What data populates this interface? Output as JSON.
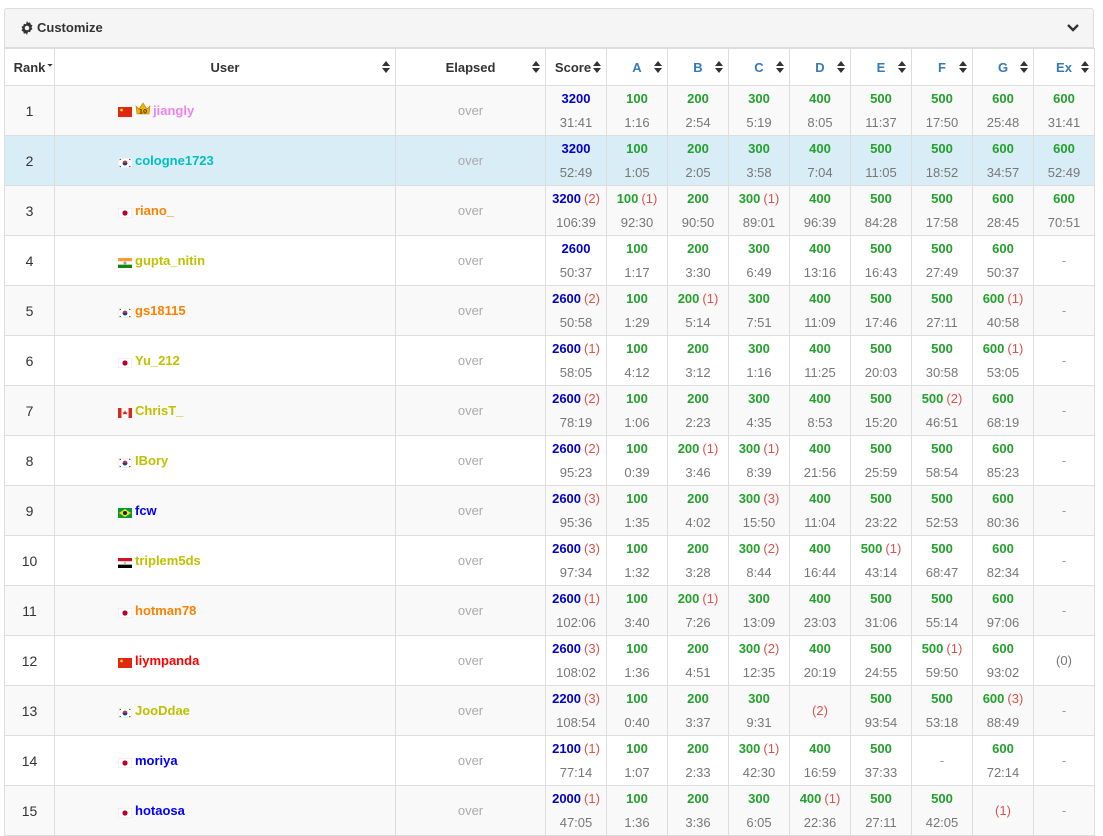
{
  "panel": {
    "title": "Customize"
  },
  "header": {
    "rank": "Rank",
    "user": "User",
    "elapsed": "Elapsed",
    "score": "Score",
    "tasks": [
      "A",
      "B",
      "C",
      "D",
      "E",
      "F",
      "G",
      "Ex"
    ]
  },
  "colors": {
    "link": "#337ab7",
    "score": "#0000cc",
    "accepted": "#22a12b",
    "penalty": "#d9534f",
    "highlight_row": "#d9edf7"
  },
  "rows": [
    {
      "rank": "1",
      "flag": "cn",
      "crown": "10",
      "user": "jiangly",
      "user_color": "#ee82ee",
      "elapsed": "over",
      "score": {
        "pt": "3200",
        "pen": "",
        "tm": "31:41"
      },
      "tasks": [
        {
          "pt": "100",
          "pen": "",
          "tm": "1:16"
        },
        {
          "pt": "200",
          "pen": "",
          "tm": "2:54"
        },
        {
          "pt": "300",
          "pen": "",
          "tm": "5:19"
        },
        {
          "pt": "400",
          "pen": "",
          "tm": "8:05"
        },
        {
          "pt": "500",
          "pen": "",
          "tm": "11:37"
        },
        {
          "pt": "500",
          "pen": "",
          "tm": "17:50"
        },
        {
          "pt": "600",
          "pen": "",
          "tm": "25:48"
        },
        {
          "pt": "600",
          "pen": "",
          "tm": "31:41"
        }
      ]
    },
    {
      "rank": "2",
      "flag": "kr",
      "crown": "",
      "user": "cologne1723",
      "user_color": "#00c0c0",
      "elapsed": "over",
      "highlight": true,
      "score": {
        "pt": "3200",
        "pen": "",
        "tm": "52:49"
      },
      "tasks": [
        {
          "pt": "100",
          "pen": "",
          "tm": "1:05"
        },
        {
          "pt": "200",
          "pen": "",
          "tm": "2:05"
        },
        {
          "pt": "300",
          "pen": "",
          "tm": "3:58"
        },
        {
          "pt": "400",
          "pen": "",
          "tm": "7:04"
        },
        {
          "pt": "500",
          "pen": "",
          "tm": "11:05"
        },
        {
          "pt": "500",
          "pen": "",
          "tm": "18:52"
        },
        {
          "pt": "600",
          "pen": "",
          "tm": "34:57"
        },
        {
          "pt": "600",
          "pen": "",
          "tm": "52:49"
        }
      ]
    },
    {
      "rank": "3",
      "flag": "jp",
      "crown": "",
      "user": "riano_",
      "user_color": "#ff8000",
      "elapsed": "over",
      "score": {
        "pt": "3200",
        "pen": "(2)",
        "tm": "106:39"
      },
      "tasks": [
        {
          "pt": "100",
          "pen": "(1)",
          "tm": "92:30"
        },
        {
          "pt": "200",
          "pen": "",
          "tm": "90:50"
        },
        {
          "pt": "300",
          "pen": "(1)",
          "tm": "89:01"
        },
        {
          "pt": "400",
          "pen": "",
          "tm": "96:39"
        },
        {
          "pt": "500",
          "pen": "",
          "tm": "84:28"
        },
        {
          "pt": "500",
          "pen": "",
          "tm": "17:58"
        },
        {
          "pt": "600",
          "pen": "",
          "tm": "28:45"
        },
        {
          "pt": "600",
          "pen": "",
          "tm": "70:51"
        }
      ]
    },
    {
      "rank": "4",
      "flag": "in",
      "crown": "",
      "user": "gupta_nitin",
      "user_color": "#c0c000",
      "elapsed": "over",
      "score": {
        "pt": "2600",
        "pen": "",
        "tm": "50:37"
      },
      "tasks": [
        {
          "pt": "100",
          "pen": "",
          "tm": "1:17"
        },
        {
          "pt": "200",
          "pen": "",
          "tm": "3:30"
        },
        {
          "pt": "300",
          "pen": "",
          "tm": "6:49"
        },
        {
          "pt": "400",
          "pen": "",
          "tm": "13:16"
        },
        {
          "pt": "500",
          "pen": "",
          "tm": "16:43"
        },
        {
          "pt": "500",
          "pen": "",
          "tm": "27:49"
        },
        {
          "pt": "600",
          "pen": "",
          "tm": "50:37"
        },
        {
          "dash": "-"
        }
      ]
    },
    {
      "rank": "5",
      "flag": "kr",
      "crown": "",
      "user": "gs18115",
      "user_color": "#ff8000",
      "elapsed": "over",
      "score": {
        "pt": "2600",
        "pen": "(2)",
        "tm": "50:58"
      },
      "tasks": [
        {
          "pt": "100",
          "pen": "",
          "tm": "1:29"
        },
        {
          "pt": "200",
          "pen": "(1)",
          "tm": "5:14"
        },
        {
          "pt": "300",
          "pen": "",
          "tm": "7:51"
        },
        {
          "pt": "400",
          "pen": "",
          "tm": "11:09"
        },
        {
          "pt": "500",
          "pen": "",
          "tm": "17:46"
        },
        {
          "pt": "500",
          "pen": "",
          "tm": "27:11"
        },
        {
          "pt": "600",
          "pen": "(1)",
          "tm": "40:58"
        },
        {
          "dash": "-"
        }
      ]
    },
    {
      "rank": "6",
      "flag": "jp",
      "crown": "",
      "user": "Yu_212",
      "user_color": "#c0c000",
      "elapsed": "over",
      "score": {
        "pt": "2600",
        "pen": "(1)",
        "tm": "58:05"
      },
      "tasks": [
        {
          "pt": "100",
          "pen": "",
          "tm": "4:12"
        },
        {
          "pt": "200",
          "pen": "",
          "tm": "3:12"
        },
        {
          "pt": "300",
          "pen": "",
          "tm": "1:16"
        },
        {
          "pt": "400",
          "pen": "",
          "tm": "11:25"
        },
        {
          "pt": "500",
          "pen": "",
          "tm": "20:03"
        },
        {
          "pt": "500",
          "pen": "",
          "tm": "30:58"
        },
        {
          "pt": "600",
          "pen": "(1)",
          "tm": "53:05"
        },
        {
          "dash": "-"
        }
      ]
    },
    {
      "rank": "7",
      "flag": "ca",
      "crown": "",
      "user": "ChrisT_",
      "user_color": "#c0c000",
      "elapsed": "over",
      "score": {
        "pt": "2600",
        "pen": "(2)",
        "tm": "78:19"
      },
      "tasks": [
        {
          "pt": "100",
          "pen": "",
          "tm": "1:06"
        },
        {
          "pt": "200",
          "pen": "",
          "tm": "2:23"
        },
        {
          "pt": "300",
          "pen": "",
          "tm": "4:35"
        },
        {
          "pt": "400",
          "pen": "",
          "tm": "8:53"
        },
        {
          "pt": "500",
          "pen": "",
          "tm": "15:20"
        },
        {
          "pt": "500",
          "pen": "(2)",
          "tm": "46:51"
        },
        {
          "pt": "600",
          "pen": "",
          "tm": "68:19"
        },
        {
          "dash": "-"
        }
      ]
    },
    {
      "rank": "8",
      "flag": "kr",
      "crown": "",
      "user": "IBory",
      "user_color": "#c0c000",
      "elapsed": "over",
      "score": {
        "pt": "2600",
        "pen": "(2)",
        "tm": "95:23"
      },
      "tasks": [
        {
          "pt": "100",
          "pen": "",
          "tm": "0:39"
        },
        {
          "pt": "200",
          "pen": "(1)",
          "tm": "3:46"
        },
        {
          "pt": "300",
          "pen": "(1)",
          "tm": "8:39"
        },
        {
          "pt": "400",
          "pen": "",
          "tm": "21:56"
        },
        {
          "pt": "500",
          "pen": "",
          "tm": "25:59"
        },
        {
          "pt": "500",
          "pen": "",
          "tm": "58:54"
        },
        {
          "pt": "600",
          "pen": "",
          "tm": "85:23"
        },
        {
          "dash": "-"
        }
      ]
    },
    {
      "rank": "9",
      "flag": "br",
      "crown": "",
      "user": "fcw",
      "user_color": "#0000ff",
      "elapsed": "over",
      "score": {
        "pt": "2600",
        "pen": "(3)",
        "tm": "95:36"
      },
      "tasks": [
        {
          "pt": "100",
          "pen": "",
          "tm": "1:35"
        },
        {
          "pt": "200",
          "pen": "",
          "tm": "4:02"
        },
        {
          "pt": "300",
          "pen": "(3)",
          "tm": "15:50"
        },
        {
          "pt": "400",
          "pen": "",
          "tm": "11:04"
        },
        {
          "pt": "500",
          "pen": "",
          "tm": "23:22"
        },
        {
          "pt": "500",
          "pen": "",
          "tm": "52:53"
        },
        {
          "pt": "600",
          "pen": "",
          "tm": "80:36"
        },
        {
          "dash": "-"
        }
      ]
    },
    {
      "rank": "10",
      "flag": "eg",
      "crown": "",
      "user": "triplem5ds",
      "user_color": "#c0c000",
      "elapsed": "over",
      "score": {
        "pt": "2600",
        "pen": "(3)",
        "tm": "97:34"
      },
      "tasks": [
        {
          "pt": "100",
          "pen": "",
          "tm": "1:32"
        },
        {
          "pt": "200",
          "pen": "",
          "tm": "3:28"
        },
        {
          "pt": "300",
          "pen": "(2)",
          "tm": "8:44"
        },
        {
          "pt": "400",
          "pen": "",
          "tm": "16:44"
        },
        {
          "pt": "500",
          "pen": "(1)",
          "tm": "43:14"
        },
        {
          "pt": "500",
          "pen": "",
          "tm": "68:47"
        },
        {
          "pt": "600",
          "pen": "",
          "tm": "82:34"
        },
        {
          "dash": "-"
        }
      ]
    },
    {
      "rank": "11",
      "flag": "jp",
      "crown": "",
      "user": "hotman78",
      "user_color": "#ff8000",
      "elapsed": "over",
      "score": {
        "pt": "2600",
        "pen": "(1)",
        "tm": "102:06"
      },
      "tasks": [
        {
          "pt": "100",
          "pen": "",
          "tm": "3:40"
        },
        {
          "pt": "200",
          "pen": "(1)",
          "tm": "7:26"
        },
        {
          "pt": "300",
          "pen": "",
          "tm": "13:09"
        },
        {
          "pt": "400",
          "pen": "",
          "tm": "23:03"
        },
        {
          "pt": "500",
          "pen": "",
          "tm": "31:06"
        },
        {
          "pt": "500",
          "pen": "",
          "tm": "55:14"
        },
        {
          "pt": "600",
          "pen": "",
          "tm": "97:06"
        },
        {
          "dash": "-"
        }
      ]
    },
    {
      "rank": "12",
      "flag": "cn",
      "crown": "",
      "user": "liympanda",
      "user_color": "#ff0000",
      "elapsed": "over",
      "score": {
        "pt": "2600",
        "pen": "(3)",
        "tm": "108:02"
      },
      "tasks": [
        {
          "pt": "100",
          "pen": "",
          "tm": "1:36"
        },
        {
          "pt": "200",
          "pen": "",
          "tm": "4:51"
        },
        {
          "pt": "300",
          "pen": "(2)",
          "tm": "12:35"
        },
        {
          "pt": "400",
          "pen": "",
          "tm": "20:19"
        },
        {
          "pt": "500",
          "pen": "",
          "tm": "24:55"
        },
        {
          "pt": "500",
          "pen": "(1)",
          "tm": "59:50"
        },
        {
          "pt": "600",
          "pen": "",
          "tm": "93:02"
        },
        {
          "zero": "(0)"
        }
      ]
    },
    {
      "rank": "13",
      "flag": "kr",
      "crown": "",
      "user": "JooDdae",
      "user_color": "#c0c000",
      "elapsed": "over",
      "score": {
        "pt": "2200",
        "pen": "(3)",
        "tm": "108:54"
      },
      "tasks": [
        {
          "pt": "100",
          "pen": "",
          "tm": "0:40"
        },
        {
          "pt": "200",
          "pen": "",
          "tm": "3:37"
        },
        {
          "pt": "300",
          "pen": "",
          "tm": "9:31"
        },
        {
          "fail": "(2)"
        },
        {
          "pt": "500",
          "pen": "",
          "tm": "93:54"
        },
        {
          "pt": "500",
          "pen": "",
          "tm": "53:18"
        },
        {
          "pt": "600",
          "pen": "(3)",
          "tm": "88:49"
        },
        {
          "dash": "-"
        }
      ]
    },
    {
      "rank": "14",
      "flag": "jp",
      "crown": "",
      "user": "moriya",
      "user_color": "#0000ff",
      "elapsed": "over",
      "score": {
        "pt": "2100",
        "pen": "(1)",
        "tm": "77:14"
      },
      "tasks": [
        {
          "pt": "100",
          "pen": "",
          "tm": "1:07"
        },
        {
          "pt": "200",
          "pen": "",
          "tm": "2:33"
        },
        {
          "pt": "300",
          "pen": "(1)",
          "tm": "42:30"
        },
        {
          "pt": "400",
          "pen": "",
          "tm": "16:59"
        },
        {
          "pt": "500",
          "pen": "",
          "tm": "37:33"
        },
        {
          "dash": "-"
        },
        {
          "pt": "600",
          "pen": "",
          "tm": "72:14"
        },
        {
          "dash": "-"
        }
      ]
    },
    {
      "rank": "15",
      "flag": "jp",
      "crown": "",
      "user": "hotaosa",
      "user_color": "#0000ff",
      "elapsed": "over",
      "score": {
        "pt": "2000",
        "pen": "(1)",
        "tm": "47:05"
      },
      "tasks": [
        {
          "pt": "100",
          "pen": "",
          "tm": "1:36"
        },
        {
          "pt": "200",
          "pen": "",
          "tm": "3:36"
        },
        {
          "pt": "300",
          "pen": "",
          "tm": "6:05"
        },
        {
          "pt": "400",
          "pen": "(1)",
          "tm": "22:36"
        },
        {
          "pt": "500",
          "pen": "",
          "tm": "27:11"
        },
        {
          "pt": "500",
          "pen": "",
          "tm": "42:05"
        },
        {
          "fail": "(1)"
        },
        {
          "dash": "-"
        }
      ]
    }
  ]
}
